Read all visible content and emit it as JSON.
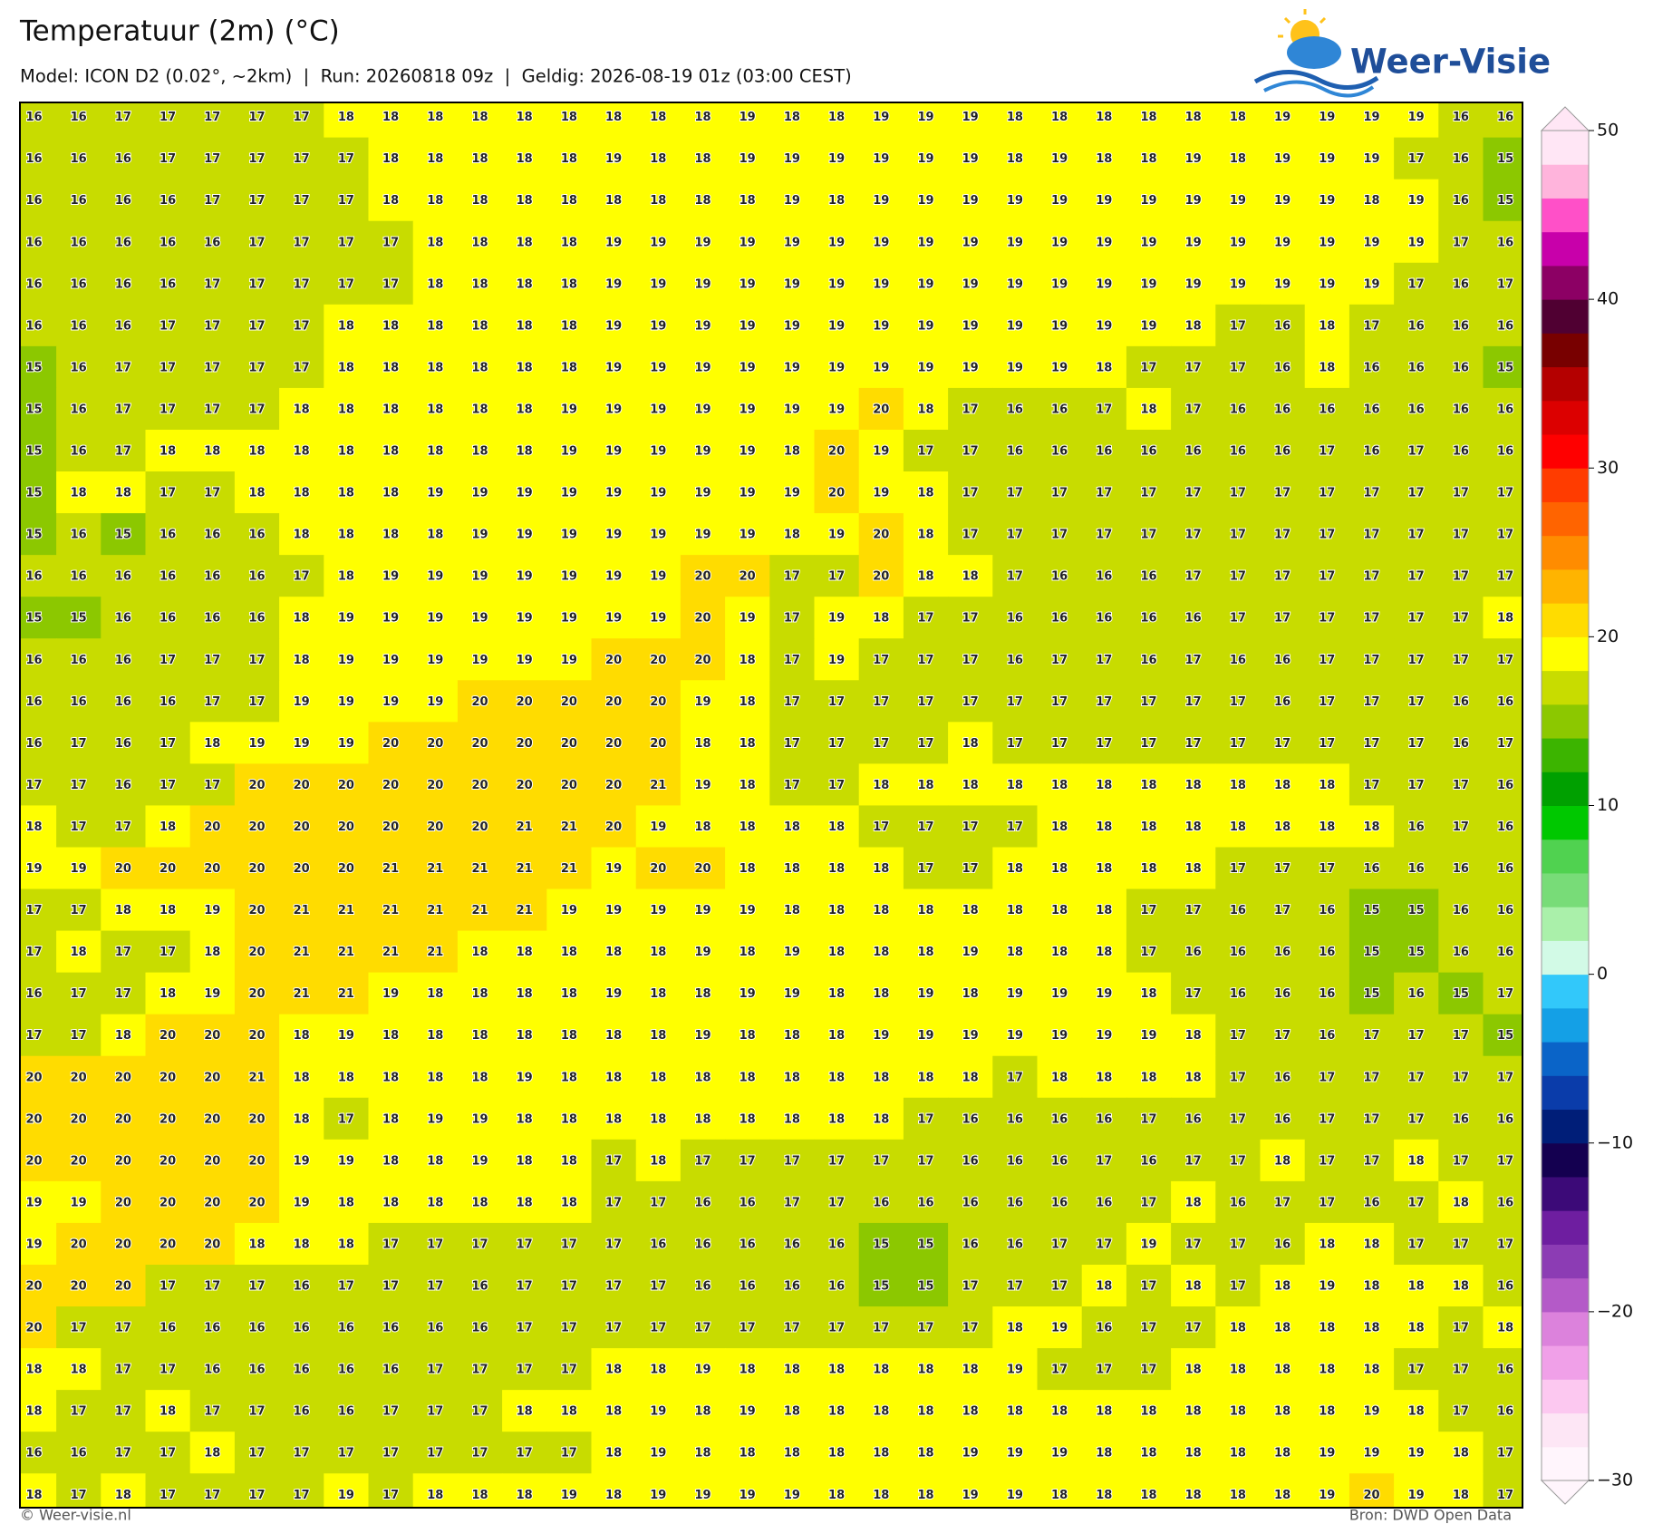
{
  "header": {
    "title": "Temperatuur (2m) (°C)",
    "subtitle": "Model: ICON D2 (0.02°, ~2km)  |  Run: 20260818 09z  |  Geldig: 2026-08-19 01z (03:00 CEST)"
  },
  "logo": "Weer-Visie",
  "map": {
    "rows": [
      [
        16,
        16,
        17,
        17,
        17,
        17,
        17,
        18,
        18,
        18,
        18,
        18,
        18,
        18,
        18,
        18,
        19,
        18,
        18,
        19,
        19,
        19,
        18,
        18,
        18,
        18,
        18,
        18,
        19,
        19,
        19,
        19,
        16,
        16
      ],
      [
        16,
        16,
        16,
        17,
        17,
        17,
        17,
        17,
        18,
        18,
        18,
        18,
        18,
        19,
        18,
        18,
        19,
        19,
        19,
        19,
        19,
        19,
        18,
        19,
        18,
        18,
        19,
        18,
        19,
        19,
        19,
        17,
        16,
        15
      ],
      [
        16,
        16,
        16,
        16,
        17,
        17,
        17,
        17,
        18,
        18,
        18,
        18,
        18,
        18,
        18,
        18,
        18,
        19,
        18,
        19,
        19,
        19,
        19,
        19,
        19,
        19,
        19,
        19,
        19,
        19,
        18,
        19,
        16,
        15
      ],
      [
        16,
        16,
        16,
        16,
        16,
        17,
        17,
        17,
        17,
        18,
        18,
        18,
        18,
        19,
        19,
        19,
        19,
        19,
        19,
        19,
        19,
        19,
        19,
        19,
        19,
        19,
        19,
        19,
        19,
        19,
        19,
        19,
        17,
        16
      ],
      [
        16,
        16,
        16,
        16,
        17,
        17,
        17,
        17,
        17,
        18,
        18,
        18,
        18,
        19,
        19,
        19,
        19,
        19,
        19,
        19,
        19,
        19,
        19,
        19,
        19,
        19,
        19,
        19,
        19,
        19,
        19,
        17,
        16,
        17
      ],
      [
        16,
        16,
        16,
        17,
        17,
        17,
        17,
        18,
        18,
        18,
        18,
        18,
        18,
        19,
        19,
        19,
        19,
        19,
        19,
        19,
        19,
        19,
        19,
        19,
        19,
        19,
        18,
        17,
        16,
        18,
        17,
        16,
        16,
        16
      ],
      [
        15,
        16,
        17,
        17,
        17,
        17,
        17,
        18,
        18,
        18,
        18,
        18,
        18,
        19,
        19,
        19,
        19,
        19,
        19,
        19,
        19,
        19,
        19,
        19,
        18,
        17,
        17,
        17,
        16,
        18,
        16,
        16,
        16,
        15
      ],
      [
        15,
        16,
        17,
        17,
        17,
        17,
        18,
        18,
        18,
        18,
        18,
        18,
        19,
        19,
        19,
        19,
        19,
        19,
        19,
        20,
        18,
        17,
        16,
        16,
        17,
        18,
        17,
        16,
        16,
        16,
        16,
        16,
        16,
        16
      ],
      [
        15,
        16,
        17,
        18,
        18,
        18,
        18,
        18,
        18,
        18,
        18,
        18,
        19,
        19,
        19,
        19,
        19,
        18,
        20,
        19,
        17,
        17,
        16,
        16,
        16,
        16,
        16,
        16,
        16,
        17,
        16,
        17,
        16,
        16
      ],
      [
        15,
        18,
        18,
        17,
        17,
        18,
        18,
        18,
        18,
        19,
        19,
        19,
        19,
        19,
        19,
        19,
        19,
        19,
        20,
        19,
        18,
        17,
        17,
        17,
        17,
        17,
        17,
        17,
        17,
        17,
        17,
        17,
        17,
        17
      ],
      [
        15,
        16,
        15,
        16,
        16,
        16,
        18,
        18,
        18,
        18,
        19,
        19,
        19,
        19,
        19,
        19,
        19,
        18,
        19,
        20,
        18,
        17,
        17,
        17,
        17,
        17,
        17,
        17,
        17,
        17,
        17,
        17,
        17,
        17
      ],
      [
        16,
        16,
        16,
        16,
        16,
        16,
        17,
        18,
        19,
        19,
        19,
        19,
        19,
        19,
        19,
        20,
        20,
        17,
        17,
        20,
        18,
        18,
        17,
        16,
        16,
        16,
        17,
        17,
        17,
        17,
        17,
        17,
        17,
        17
      ],
      [
        15,
        15,
        16,
        16,
        16,
        16,
        18,
        19,
        19,
        19,
        19,
        19,
        19,
        19,
        19,
        20,
        19,
        17,
        19,
        18,
        17,
        17,
        16,
        16,
        16,
        16,
        16,
        17,
        17,
        17,
        17,
        17,
        17,
        18
      ],
      [
        16,
        16,
        16,
        17,
        17,
        17,
        18,
        19,
        19,
        19,
        19,
        19,
        19,
        20,
        20,
        20,
        18,
        17,
        19,
        17,
        17,
        17,
        16,
        17,
        17,
        16,
        17,
        16,
        16,
        17,
        17,
        17,
        17,
        17
      ],
      [
        16,
        16,
        16,
        16,
        17,
        17,
        19,
        19,
        19,
        19,
        20,
        20,
        20,
        20,
        20,
        19,
        18,
        17,
        17,
        17,
        17,
        17,
        17,
        17,
        17,
        17,
        17,
        17,
        16,
        17,
        17,
        17,
        16,
        16
      ],
      [
        16,
        17,
        16,
        17,
        18,
        19,
        19,
        19,
        20,
        20,
        20,
        20,
        20,
        20,
        20,
        18,
        18,
        17,
        17,
        17,
        17,
        18,
        17,
        17,
        17,
        17,
        17,
        17,
        17,
        17,
        17,
        17,
        16,
        17
      ],
      [
        17,
        17,
        16,
        17,
        17,
        20,
        20,
        20,
        20,
        20,
        20,
        20,
        20,
        20,
        21,
        19,
        18,
        17,
        17,
        18,
        18,
        18,
        18,
        18,
        18,
        18,
        18,
        18,
        18,
        18,
        17,
        17,
        17,
        16
      ],
      [
        18,
        17,
        17,
        18,
        20,
        20,
        20,
        20,
        20,
        20,
        20,
        21,
        21,
        20,
        19,
        18,
        18,
        18,
        18,
        17,
        17,
        17,
        17,
        18,
        18,
        18,
        18,
        18,
        18,
        18,
        18,
        16,
        17,
        16
      ],
      [
        19,
        19,
        20,
        20,
        20,
        20,
        20,
        20,
        21,
        21,
        21,
        21,
        21,
        19,
        20,
        20,
        18,
        18,
        18,
        18,
        17,
        17,
        18,
        18,
        18,
        18,
        18,
        17,
        17,
        17,
        16,
        16,
        16,
        16
      ],
      [
        17,
        17,
        18,
        18,
        19,
        20,
        21,
        21,
        21,
        21,
        21,
        21,
        19,
        19,
        19,
        19,
        19,
        18,
        18,
        18,
        18,
        18,
        18,
        18,
        18,
        17,
        17,
        16,
        17,
        16,
        15,
        15,
        16,
        16
      ],
      [
        17,
        18,
        17,
        17,
        18,
        20,
        21,
        21,
        21,
        21,
        18,
        18,
        18,
        18,
        18,
        19,
        18,
        19,
        18,
        18,
        18,
        19,
        18,
        18,
        18,
        17,
        16,
        16,
        16,
        16,
        15,
        15,
        16,
        16
      ],
      [
        16,
        17,
        17,
        18,
        19,
        20,
        21,
        21,
        19,
        18,
        18,
        18,
        18,
        19,
        18,
        18,
        19,
        19,
        18,
        18,
        19,
        18,
        19,
        19,
        19,
        18,
        17,
        16,
        16,
        16,
        15,
        16,
        15,
        17
      ],
      [
        17,
        17,
        18,
        20,
        20,
        20,
        18,
        19,
        18,
        18,
        18,
        18,
        18,
        18,
        18,
        19,
        18,
        18,
        18,
        19,
        19,
        19,
        19,
        19,
        19,
        19,
        18,
        17,
        17,
        16,
        17,
        17,
        17,
        15
      ],
      [
        20,
        20,
        20,
        20,
        20,
        21,
        18,
        18,
        18,
        18,
        18,
        19,
        18,
        18,
        18,
        18,
        18,
        18,
        18,
        18,
        18,
        18,
        17,
        18,
        18,
        18,
        18,
        17,
        16,
        17,
        17,
        17,
        17,
        17
      ],
      [
        20,
        20,
        20,
        20,
        20,
        20,
        18,
        17,
        18,
        19,
        19,
        18,
        18,
        18,
        18,
        18,
        18,
        18,
        18,
        18,
        17,
        16,
        16,
        16,
        16,
        17,
        16,
        17,
        16,
        17,
        17,
        17,
        16,
        16
      ],
      [
        20,
        20,
        20,
        20,
        20,
        20,
        19,
        19,
        18,
        18,
        19,
        18,
        18,
        17,
        18,
        17,
        17,
        17,
        17,
        17,
        17,
        16,
        16,
        16,
        17,
        16,
        17,
        17,
        18,
        17,
        17,
        18,
        17,
        17
      ],
      [
        19,
        19,
        20,
        20,
        20,
        20,
        19,
        18,
        18,
        18,
        18,
        18,
        18,
        17,
        17,
        16,
        16,
        17,
        17,
        16,
        16,
        16,
        16,
        16,
        16,
        17,
        18,
        16,
        17,
        17,
        16,
        17,
        18,
        16
      ],
      [
        19,
        20,
        20,
        20,
        20,
        18,
        18,
        18,
        17,
        17,
        17,
        17,
        17,
        17,
        16,
        16,
        16,
        16,
        16,
        15,
        15,
        16,
        16,
        17,
        17,
        19,
        17,
        17,
        16,
        18,
        18,
        17,
        17,
        17
      ],
      [
        20,
        20,
        20,
        17,
        17,
        17,
        16,
        17,
        17,
        17,
        16,
        17,
        17,
        17,
        17,
        16,
        16,
        16,
        16,
        15,
        15,
        17,
        17,
        17,
        18,
        17,
        18,
        17,
        18,
        19,
        18,
        18,
        18,
        16
      ],
      [
        20,
        17,
        17,
        16,
        16,
        16,
        16,
        16,
        16,
        16,
        16,
        17,
        17,
        17,
        17,
        17,
        17,
        17,
        17,
        17,
        17,
        17,
        18,
        19,
        16,
        17,
        17,
        18,
        18,
        18,
        18,
        18,
        17,
        18
      ],
      [
        18,
        18,
        17,
        17,
        16,
        16,
        16,
        16,
        16,
        17,
        17,
        17,
        17,
        18,
        18,
        19,
        18,
        18,
        18,
        18,
        18,
        18,
        19,
        17,
        17,
        17,
        18,
        18,
        18,
        18,
        18,
        17,
        17,
        16
      ],
      [
        18,
        17,
        17,
        18,
        17,
        17,
        16,
        16,
        17,
        17,
        17,
        18,
        18,
        18,
        19,
        18,
        19,
        18,
        18,
        18,
        18,
        18,
        18,
        18,
        18,
        18,
        18,
        18,
        18,
        18,
        19,
        18,
        17,
        16
      ],
      [
        16,
        16,
        17,
        17,
        18,
        17,
        17,
        17,
        17,
        17,
        17,
        17,
        17,
        18,
        19,
        18,
        18,
        18,
        18,
        18,
        18,
        19,
        19,
        19,
        18,
        18,
        18,
        18,
        18,
        19,
        19,
        19,
        18,
        17
      ],
      [
        18,
        17,
        18,
        17,
        17,
        17,
        17,
        19,
        17,
        18,
        18,
        18,
        19,
        18,
        19,
        19,
        19,
        19,
        18,
        18,
        18,
        19,
        19,
        18,
        18,
        18,
        18,
        18,
        18,
        19,
        20,
        19,
        18,
        17
      ]
    ]
  },
  "colorbar": {
    "lim": [
      -30,
      50
    ],
    "ticks": [
      {
        "value": -30,
        "label": "−30"
      },
      {
        "value": -20,
        "label": "−20"
      },
      {
        "value": -10,
        "label": "−10"
      },
      0,
      10,
      20,
      30,
      40,
      50
    ],
    "colors": [
      "#fff5fc",
      "#fde6f5",
      "#fcc8f0",
      "#f0a0e8",
      "#dc82dc",
      "#b45ac8",
      "#8c3cb4",
      "#6e1ea0",
      "#3c0a78",
      "#140050",
      "#001e78",
      "#0a3caa",
      "#0a64c8",
      "#14a0e6",
      "#32c8fa",
      "#d2fae6",
      "#aaf0aa",
      "#78dc78",
      "#50d250",
      "#00c800",
      "#00a000",
      "#3cb400",
      "#8cc800",
      "#c8dc00",
      "#ffff00",
      "#ffdc00",
      "#ffb400",
      "#ff8c00",
      "#ff6400",
      "#ff3c00",
      "#ff0000",
      "#dc0000",
      "#b40000",
      "#780000",
      "#500032",
      "#8c0064",
      "#c800aa",
      "#ff50c8",
      "#ffb4dc",
      "#ffe6f5"
    ]
  },
  "footer": {
    "left": "© Weer-visie.nl",
    "right": "Bron: DWD Open Data"
  }
}
